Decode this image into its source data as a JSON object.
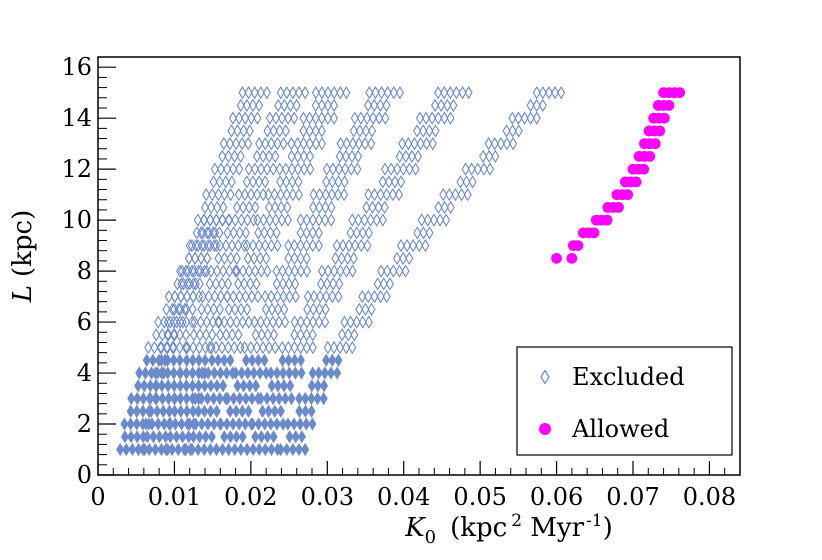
{
  "chart_data": {
    "type": "scatter",
    "title": "",
    "xlabel": {
      "symbol": "K",
      "subscript": "0",
      "units_open": "(kpc",
      "units_exp1": "2",
      "units_mid": " Myr",
      "units_exp2": "-1",
      "units_close": ")"
    },
    "ylabel": {
      "symbol": "L",
      "units": "(kpc)"
    },
    "xlim": [
      0,
      0.084
    ],
    "ylim": [
      0,
      16.4
    ],
    "xticks": [
      0,
      0.01,
      0.02,
      0.03,
      0.04,
      0.05,
      0.06,
      0.07,
      0.08
    ],
    "xtick_labels": [
      "0",
      "0.01",
      "0.02",
      "0.03",
      "0.04",
      "0.05",
      "0.06",
      "0.07",
      "0.08"
    ],
    "yticks": [
      0,
      2,
      4,
      6,
      8,
      10,
      12,
      14,
      16
    ],
    "ytick_labels": [
      "0",
      "2",
      "4",
      "6",
      "8",
      "10",
      "12",
      "14",
      "16"
    ],
    "legend_position": "bottom-right",
    "series": [
      {
        "name": "Excluded",
        "marker": "open-diamond",
        "color": "#6a8acb",
        "L_min": 1.0,
        "L_max": 15.0,
        "L_step": 0.5,
        "bands": [
          {
            "K_center_at_1kpc": 0.0045,
            "K_center_at_Lmax": 0.0155,
            "L_max": 10.0,
            "count": [
              4,
              5
            ]
          },
          {
            "K_center_at_1kpc": 0.0075,
            "K_center_at_Lmax": 0.0205,
            "L_max": 15.0,
            "count": [
              4,
              5
            ]
          },
          {
            "K_center_at_1kpc": 0.0105,
            "K_center_at_Lmax": 0.0255,
            "L_max": 15.0,
            "count": [
              4,
              5
            ]
          },
          {
            "K_center_at_1kpc": 0.0135,
            "K_center_at_Lmax": 0.0305,
            "L_max": 15.0,
            "count": [
              4,
              6
            ]
          },
          {
            "K_center_at_1kpc": 0.0175,
            "K_center_at_Lmax": 0.0375,
            "L_max": 15.0,
            "count": [
              4,
              6
            ]
          },
          {
            "K_center_at_1kpc": 0.0215,
            "K_center_at_Lmax": 0.0465,
            "L_max": 15.0,
            "count": [
              4,
              6
            ]
          },
          {
            "K_center_at_1kpc": 0.0255,
            "K_center_at_Lmax": 0.059,
            "L_max": 15.0,
            "count": [
              3,
              5
            ]
          }
        ]
      },
      {
        "name": "Allowed",
        "marker": "filled-circle",
        "color": "#ff00ff",
        "points": [
          [
            0.06,
            8.5
          ],
          [
            0.062,
            8.5
          ],
          [
            0.0622,
            9.0
          ],
          [
            0.0628,
            9.0
          ],
          [
            0.0635,
            9.5
          ],
          [
            0.0642,
            9.5
          ],
          [
            0.0649,
            9.5
          ],
          [
            0.0652,
            10.0
          ],
          [
            0.0659,
            10.0
          ],
          [
            0.0666,
            10.0
          ],
          [
            0.0667,
            10.5
          ],
          [
            0.0674,
            10.5
          ],
          [
            0.0681,
            10.5
          ],
          [
            0.0679,
            11.0
          ],
          [
            0.0686,
            11.0
          ],
          [
            0.0693,
            11.0
          ],
          [
            0.069,
            11.5
          ],
          [
            0.0697,
            11.5
          ],
          [
            0.0704,
            11.5
          ],
          [
            0.07,
            12.0
          ],
          [
            0.0707,
            12.0
          ],
          [
            0.0714,
            12.0
          ],
          [
            0.0708,
            12.5
          ],
          [
            0.0715,
            12.5
          ],
          [
            0.0722,
            12.5
          ],
          [
            0.0715,
            13.0
          ],
          [
            0.0722,
            13.0
          ],
          [
            0.0729,
            13.0
          ],
          [
            0.0721,
            13.5
          ],
          [
            0.0728,
            13.5
          ],
          [
            0.0735,
            13.5
          ],
          [
            0.0727,
            14.0
          ],
          [
            0.0734,
            14.0
          ],
          [
            0.0741,
            14.0
          ],
          [
            0.0733,
            14.5
          ],
          [
            0.074,
            14.5
          ],
          [
            0.0747,
            14.5
          ],
          [
            0.074,
            15.0
          ],
          [
            0.0747,
            15.0
          ],
          [
            0.0754,
            15.0
          ],
          [
            0.0761,
            15.0
          ]
        ]
      }
    ]
  }
}
